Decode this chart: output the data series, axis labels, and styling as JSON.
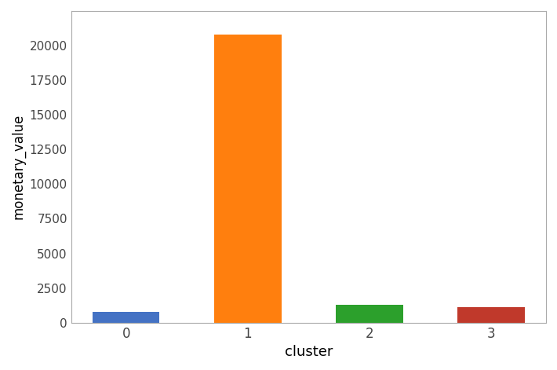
{
  "categories": [
    "0",
    "1",
    "2",
    "3"
  ],
  "values": [
    750,
    20800,
    1300,
    1100
  ],
  "bar_colors": [
    "#4472C4",
    "#FF7F0E",
    "#2CA02C",
    "#C0392B"
  ],
  "xlabel": "cluster",
  "ylabel": "monetary_value",
  "ylim": [
    0,
    22500
  ],
  "yticks": [
    0,
    2500,
    5000,
    7500,
    10000,
    12500,
    15000,
    17500,
    20000
  ],
  "background_color": "#ffffff",
  "bar_width": 0.55,
  "figure_bg": "#ffffff"
}
